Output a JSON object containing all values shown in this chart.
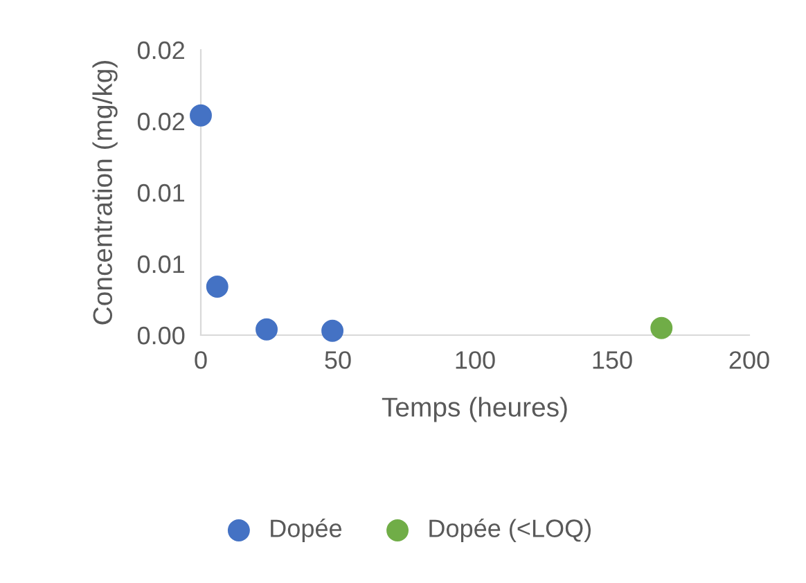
{
  "chart_data": {
    "type": "scatter",
    "xlabel": "Temps (heures)",
    "ylabel": "Concentration (mg/kg)",
    "series": [
      {
        "name": "Dopée",
        "color": "#4472c4",
        "x": [
          0,
          6,
          24,
          48
        ],
        "values": [
          0.0154,
          0.0034,
          0.0004,
          0.0003
        ]
      },
      {
        "name": "Dopée (<LOQ)",
        "color": "#70ad47",
        "x": [
          168
        ],
        "values": [
          0.0005
        ]
      }
    ],
    "xlim": [
      0,
      200
    ],
    "xticks": [
      0,
      50,
      100,
      150,
      200
    ],
    "ylim": [
      0,
      0.02
    ],
    "yticks": [
      {
        "value": 0,
        "label": "0.00"
      },
      {
        "value": 0.005,
        "label": "0.01"
      },
      {
        "value": 0.01,
        "label": "0.01"
      },
      {
        "value": 0.015,
        "label": "0.02"
      },
      {
        "value": 0.02,
        "label": "0.02"
      }
    ],
    "grid": false,
    "legend": "bottom",
    "marker": "circle"
  }
}
